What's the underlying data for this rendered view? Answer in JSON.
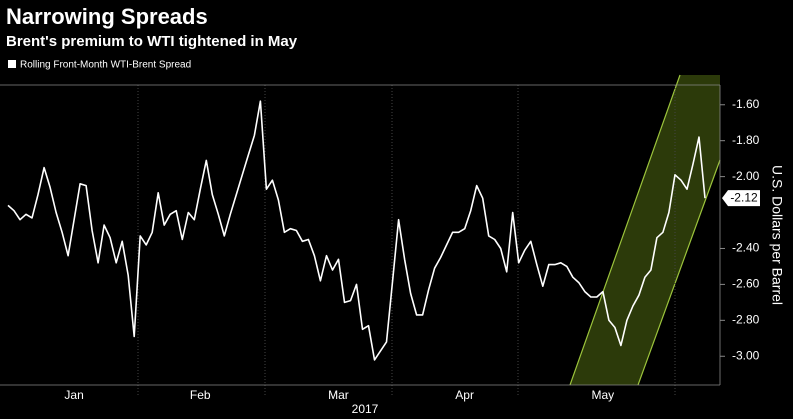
{
  "chart_data": {
    "type": "line",
    "title": "Narrowing Spreads",
    "subtitle": "Brent's premium to WTI tightened in May",
    "ylabel": "U.S. Dollars per Barrel",
    "xlabel": "2017",
    "categories": [
      null,
      null,
      null,
      null,
      null,
      null,
      null,
      null,
      null,
      null,
      null,
      "Jan",
      null,
      null,
      null,
      null,
      null,
      null,
      null,
      null,
      null,
      null,
      null,
      null,
      null,
      null,
      null,
      null,
      null,
      null,
      null,
      null,
      "Feb",
      null,
      null,
      null,
      null,
      null,
      null,
      null,
      null,
      null,
      null,
      null,
      null,
      null,
      null,
      null,
      null,
      null,
      null,
      null,
      null,
      null,
      null,
      "Mar",
      null,
      null,
      null,
      null,
      null,
      null,
      null,
      null,
      null,
      null,
      null,
      null,
      null,
      null,
      null,
      null,
      null,
      null,
      null,
      null,
      "Apr",
      null,
      null,
      null,
      null,
      null,
      null,
      null,
      null,
      null,
      null,
      null,
      null,
      null,
      null,
      null,
      null,
      null,
      null,
      null,
      null,
      null,
      null,
      "May",
      null,
      null,
      null,
      null,
      null,
      null,
      null,
      null,
      null,
      null,
      null,
      null,
      null,
      null,
      null,
      null,
      null
    ],
    "series": [
      {
        "name": "Rolling Front-Month WTI-Brent Spread",
        "color": "#ffffff",
        "values": [
          -2.16,
          -2.19,
          -2.24,
          -2.21,
          -2.23,
          -2.1,
          -1.95,
          -2.06,
          -2.2,
          -2.31,
          -2.44,
          -2.24,
          -2.04,
          -2.05,
          -2.3,
          -2.48,
          -2.27,
          -2.34,
          -2.48,
          -2.36,
          -2.55,
          -2.89,
          -2.33,
          -2.38,
          -2.31,
          -2.09,
          -2.27,
          -2.21,
          -2.19,
          -2.35,
          -2.2,
          -2.24,
          -2.07,
          -1.91,
          -2.1,
          -2.21,
          -2.33,
          -2.21,
          -2.1,
          -1.99,
          -1.88,
          -1.77,
          -1.58,
          -2.07,
          -2.02,
          -2.13,
          -2.31,
          -2.29,
          -2.3,
          -2.36,
          -2.35,
          -2.44,
          -2.58,
          -2.44,
          -2.52,
          -2.46,
          -2.7,
          -2.69,
          -2.6,
          -2.85,
          -2.83,
          -3.02,
          -2.97,
          -2.92,
          -2.58,
          -2.24,
          -2.46,
          -2.65,
          -2.77,
          -2.77,
          -2.63,
          -2.51,
          -2.45,
          -2.38,
          -2.31,
          -2.31,
          -2.29,
          -2.19,
          -2.05,
          -2.12,
          -2.33,
          -2.35,
          -2.4,
          -2.53,
          -2.2,
          -2.48,
          -2.41,
          -2.36,
          -2.49,
          -2.61,
          -2.49,
          -2.49,
          -2.48,
          -2.5,
          -2.56,
          -2.59,
          -2.64,
          -2.67,
          -2.67,
          -2.64,
          -2.8,
          -2.84,
          -2.94,
          -2.8,
          -2.72,
          -2.66,
          -2.56,
          -2.52,
          -2.34,
          -2.31,
          -2.2,
          -1.99,
          -2.02,
          -2.07,
          -1.93,
          -1.78,
          -2.12
        ]
      }
    ],
    "ylim": [
      -3.16,
      -1.49
    ],
    "yticks": [
      {
        "value": -1.6,
        "label": "-1.60"
      },
      {
        "value": -1.8,
        "label": "-1.80"
      },
      {
        "value": -2.0,
        "label": "-2.00"
      },
      {
        "value": -2.4,
        "label": "-2.40"
      },
      {
        "value": -2.6,
        "label": "-2.60"
      },
      {
        "value": -2.8,
        "label": "-2.80"
      },
      {
        "value": -3.0,
        "label": "-3.00"
      }
    ]
  }
}
